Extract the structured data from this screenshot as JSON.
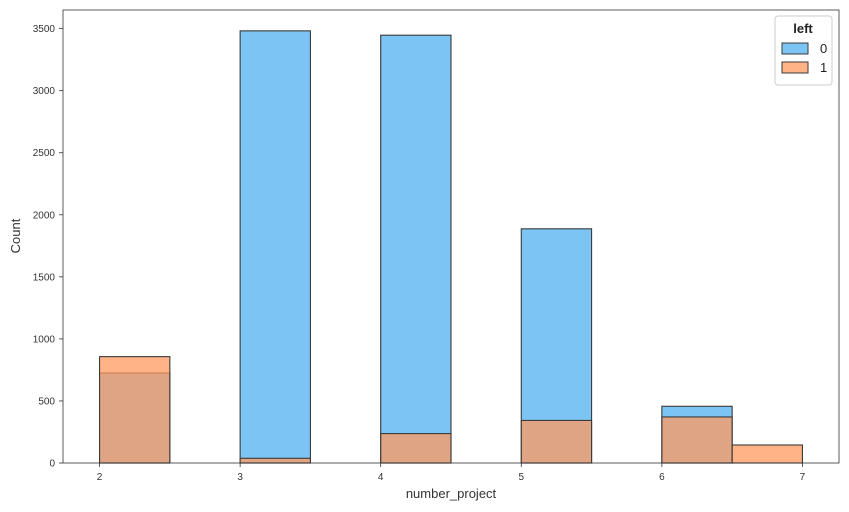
{
  "chart_data": {
    "type": "bar",
    "subtype": "histogram",
    "xlabel": "number_project",
    "ylabel": "Count",
    "xlim": [
      1.74,
      7.26
    ],
    "ylim": [
      0,
      3650
    ],
    "x_ticks": [
      2,
      3,
      4,
      5,
      6,
      7
    ],
    "y_ticks": [
      0,
      500,
      1000,
      1500,
      2000,
      2500,
      3000,
      3500
    ],
    "bin_width": 0.5,
    "grid": false,
    "legend": {
      "title": "left",
      "placement": "top-right"
    },
    "series": [
      {
        "name": "0",
        "color": "#4fb0f0",
        "bins": [
          {
            "x0": 2,
            "x1": 2.5,
            "value": 725
          },
          {
            "x0": 3,
            "x1": 3.5,
            "value": 3482
          },
          {
            "x0": 4,
            "x1": 4.5,
            "value": 3447
          },
          {
            "x0": 5,
            "x1": 5.5,
            "value": 1887
          },
          {
            "x0": 6,
            "x1": 6.5,
            "value": 457
          }
        ]
      },
      {
        "name": "1",
        "color": "#ff9a5e",
        "bins": [
          {
            "x0": 2,
            "x1": 2.5,
            "value": 857
          },
          {
            "x0": 3,
            "x1": 3.5,
            "value": 38
          },
          {
            "x0": 4,
            "x1": 4.5,
            "value": 237
          },
          {
            "x0": 5,
            "x1": 5.5,
            "value": 343
          },
          {
            "x0": 6,
            "x1": 6.5,
            "value": 371
          },
          {
            "x0": 6.5,
            "x1": 7,
            "value": 145
          }
        ]
      }
    ]
  }
}
